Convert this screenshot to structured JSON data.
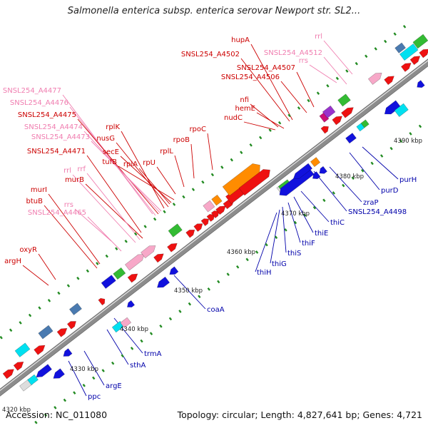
{
  "title": "Salmonella enterica subsp. enterica serovar Newport str. SL2...",
  "footer": {
    "accession_label": "Accession:",
    "accession": "NC_011080",
    "topology_label": "Topology:",
    "topology": "circular",
    "length_label": "Length:",
    "length": "4,827,641 bp",
    "genes_label": "Genes:",
    "genes": "4,721"
  },
  "colors": {
    "backbone": "#8c8c8c",
    "rna_label": "#f07eb0",
    "forward_label": "#cc0000",
    "reverse_label": "#0000aa",
    "forward_feature": "#ee1111",
    "reverse_feature": "#1111dd",
    "rrna_feature": "#f7a8c8",
    "operon_feature": "#ff8c00",
    "cyan_feature": "#00e0f0",
    "green_feature": "#33bb33",
    "steel_feature": "#4a7ab0",
    "tick_dot": "#228b22"
  },
  "ticks": [
    {
      "label": "4330 kbp"
    },
    {
      "label": "4340 kbp"
    },
    {
      "label": "4350 kbp"
    },
    {
      "label": "4360 kbp"
    },
    {
      "label": "4370 kbp"
    },
    {
      "label": "4380 kbp"
    },
    {
      "label": "4390 kbp"
    }
  ],
  "corner_tick_label": "4320 kbp",
  "upper_labels": [
    {
      "text": "rrl",
      "kind": "rna"
    },
    {
      "text": "hupA",
      "kind": "fwd"
    },
    {
      "text": "SNSL254_A4512",
      "kind": "rna"
    },
    {
      "text": "SNSL254_A4502",
      "kind": "fwd"
    },
    {
      "text": "rrs",
      "kind": "rna"
    },
    {
      "text": "SNSL254_A4507",
      "kind": "fwd"
    },
    {
      "text": "SNSL254_A4506",
      "kind": "fwd"
    },
    {
      "text": "SNSL254_A4477",
      "kind": "rna"
    },
    {
      "text": "nfi",
      "kind": "fwd"
    },
    {
      "text": "SNSL254_A4476",
      "kind": "rna"
    },
    {
      "text": "hemE",
      "kind": "fwd"
    },
    {
      "text": "SNSL254_A4475",
      "kind": "fwd"
    },
    {
      "text": "nudC",
      "kind": "fwd"
    },
    {
      "text": "SNSL254_A4474",
      "kind": "rna"
    },
    {
      "text": "rplK",
      "kind": "fwd"
    },
    {
      "text": "rpoC",
      "kind": "fwd"
    },
    {
      "text": "nusG",
      "kind": "fwd"
    },
    {
      "text": "SNSL254_A4473",
      "kind": "rna"
    },
    {
      "text": "rpoB",
      "kind": "fwd"
    },
    {
      "text": "secE",
      "kind": "fwd"
    },
    {
      "text": "SNSL254_A4471",
      "kind": "fwd"
    },
    {
      "text": "tufB",
      "kind": "fwd"
    },
    {
      "text": "rplA",
      "kind": "fwd"
    },
    {
      "text": "rpU",
      "kind": "fwd"
    },
    {
      "text": "rplL",
      "kind": "fwd"
    },
    {
      "text": "murB",
      "kind": "fwd"
    },
    {
      "text": "rrl",
      "kind": "rna"
    },
    {
      "text": "rrf",
      "kind": "rna"
    },
    {
      "text": "murI",
      "kind": "fwd"
    },
    {
      "text": "btuB",
      "kind": "fwd"
    },
    {
      "text": "rrs",
      "kind": "rna"
    },
    {
      "text": "SNSL254_A4465",
      "kind": "rna"
    },
    {
      "text": "oxyR",
      "kind": "fwd"
    },
    {
      "text": "argH",
      "kind": "fwd"
    }
  ],
  "lower_labels": [
    {
      "text": "purH"
    },
    {
      "text": "purD"
    },
    {
      "text": "zraP"
    },
    {
      "text": "SNSL254_A4498"
    },
    {
      "text": "thiC"
    },
    {
      "text": "thiE"
    },
    {
      "text": "thiF"
    },
    {
      "text": "thiS"
    },
    {
      "text": "thiG"
    },
    {
      "text": "thiH"
    },
    {
      "text": "coaA"
    },
    {
      "text": "trmA"
    },
    {
      "text": "sthA"
    },
    {
      "text": "argE"
    },
    {
      "text": "ppc"
    }
  ]
}
